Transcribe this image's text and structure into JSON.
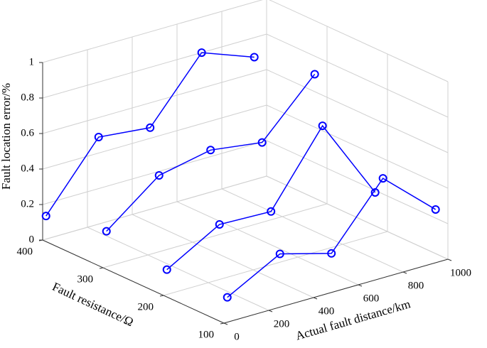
{
  "chart_data": {
    "type": "line3d",
    "xlabel": "Actual fault distance/km",
    "ylabel": "Fault resistance/Ω",
    "zlabel": "Fault location error/%",
    "xlim": [
      0,
      1000
    ],
    "ylim": [
      100,
      400
    ],
    "zlim": [
      0,
      1
    ],
    "xticks": [
      0,
      200,
      400,
      600,
      800,
      1000
    ],
    "yticks": [
      100,
      200,
      300,
      400
    ],
    "zticks": [
      0,
      0.2,
      0.4,
      0.6,
      0.8,
      1
    ],
    "grid": true,
    "color": "#0000ff",
    "x": [
      15,
      250,
      480,
      710,
      945
    ],
    "series": [
      {
        "y": 400,
        "values": [
          0.13,
          0.49,
          0.46,
          0.8,
          0.69
        ]
      },
      {
        "y": 300,
        "values": [
          0.2,
          0.43,
          0.49,
          0.45,
          0.75
        ]
      },
      {
        "y": 200,
        "values": [
          0.14,
          0.31,
          0.3,
          0.7,
          0.24
        ]
      },
      {
        "y": 100,
        "values": [
          0.14,
          0.3,
          0.22,
          0.56,
          0.3
        ]
      }
    ]
  }
}
